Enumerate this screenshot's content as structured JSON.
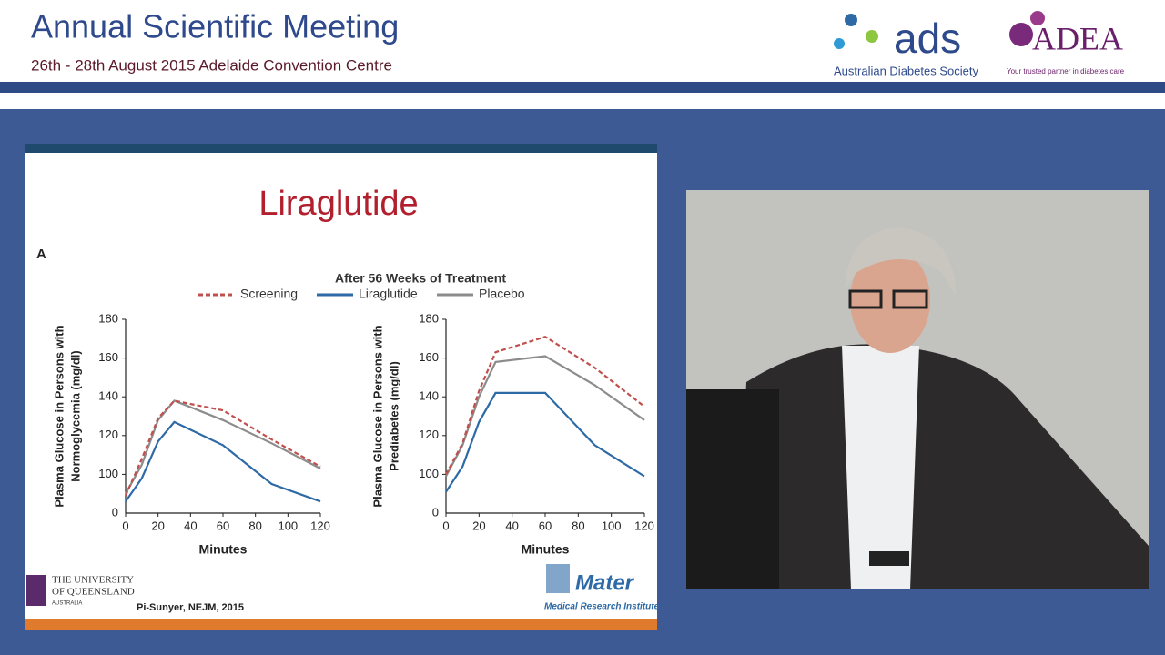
{
  "header": {
    "title": "Annual Scientific Meeting",
    "subtitle": "26th - 28th August 2015 Adelaide Convention Centre",
    "ads_logo": "ads",
    "ads_name": "Australian Diabetes Society",
    "adea_logo": "ADEA",
    "adea_tagline": "Your trusted partner in diabetes care"
  },
  "slide": {
    "title": "Liraglutide",
    "panel_label": "A",
    "chart_heading": "After 56 Weeks of Treatment",
    "university": [
      "THE UNIVERSITY",
      "OF QUEENSLAND",
      "AUSTRALIA"
    ],
    "citation": "Pi-Sunyer, NEJM, 2015",
    "mater": "Mater",
    "mater_sub": "Medical Research Institute"
  },
  "chart_data": [
    {
      "type": "line",
      "ylabel": [
        "Plasma Glucose in Persons with",
        "Normoglycemia (mg/dl)"
      ],
      "xlabel": "Minutes",
      "xlim": [
        0,
        120
      ],
      "xticks": [
        0,
        20,
        40,
        60,
        80,
        100,
        120
      ],
      "ylim": [
        80,
        180
      ],
      "yticks": [
        100,
        120,
        140,
        160,
        180
      ],
      "axis_floor_label": "0",
      "x": [
        0,
        10,
        20,
        30,
        60,
        90,
        120
      ],
      "series": [
        {
          "name": "Screening",
          "color": "#c0504d",
          "dashed": true,
          "values": [
            89,
            108,
            129,
            138,
            133,
            118,
            104
          ]
        },
        {
          "name": "Liraglutide",
          "color": "#2e6aa6",
          "dashed": false,
          "values": [
            86,
            98,
            117,
            127,
            115,
            95,
            86
          ]
        },
        {
          "name": "Placebo",
          "color": "#8c8c8c",
          "dashed": false,
          "values": [
            90,
            105,
            128,
            138,
            128,
            116,
            103
          ]
        }
      ]
    },
    {
      "type": "line",
      "ylabel": [
        "Plasma Glucose in Persons with",
        "Prediabetes (mg/dl)"
      ],
      "xlabel": "Minutes",
      "xlim": [
        0,
        120
      ],
      "xticks": [
        0,
        20,
        40,
        60,
        80,
        100,
        120
      ],
      "ylim": [
        80,
        180
      ],
      "yticks": [
        100,
        120,
        140,
        160,
        180
      ],
      "axis_floor_label": "0",
      "x": [
        0,
        10,
        20,
        30,
        60,
        90,
        120
      ],
      "series": [
        {
          "color": "#c0504d",
          "dashed": true,
          "values": [
            100,
            116,
            143,
            163,
            171,
            155,
            135
          ]
        },
        {
          "color": "#2e6aa6",
          "dashed": false,
          "values": [
            91,
            104,
            127,
            142,
            142,
            115,
            99
          ]
        },
        {
          "color": "#8c8c8c",
          "dashed": false,
          "values": [
            99,
            115,
            140,
            158,
            161,
            146,
            128
          ]
        }
      ]
    }
  ]
}
